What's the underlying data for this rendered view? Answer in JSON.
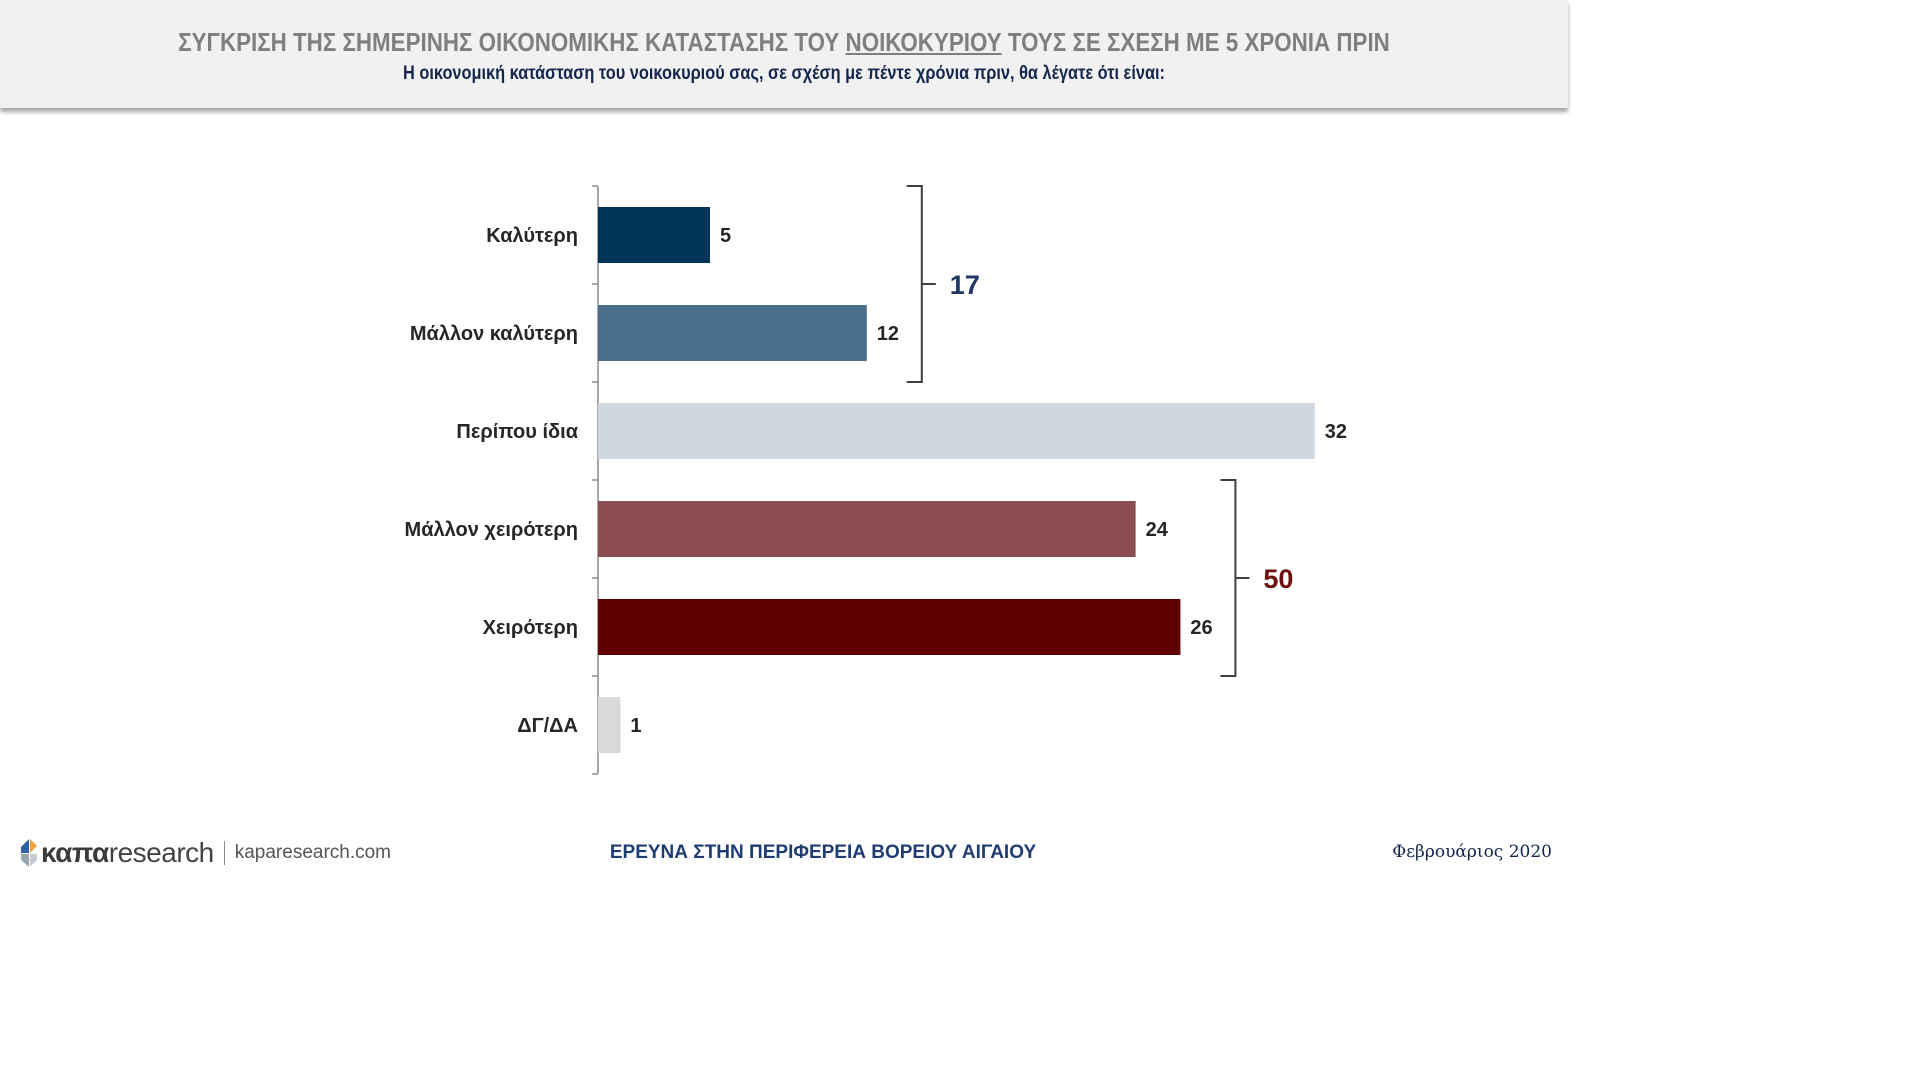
{
  "header": {
    "title_pre": "ΣΥΓΚΡΙΣΗ ΤΗΣ ΣΗΜΕΡΙΝΗΣ ΟΙΚΟΝΟΜΙΚΗΣ ΚΑΤΑΣΤΑΣΗΣ ΤΟΥ ",
    "title_underlined": "ΝΟΙΚΟΚΥΡΙΟΥ",
    "title_post": " ΤΟΥΣ ΣΕ ΣΧΕΣΗ ΜΕ 5 ΧΡΟΝΙΑ ΠΡΙΝ",
    "subtitle": "Η οικονομική κατάσταση του νοικοκυριού σας, σε σχέση με πέντε χρόνια πριν, θα λέγατε ότι είναι:"
  },
  "chart_data": {
    "type": "bar",
    "orientation": "horizontal",
    "categories": [
      "Καλύτερη",
      "Μάλλον καλύτερη",
      "Περίπου ίδια",
      "Μάλλον χειρότερη",
      "Χειρότερη",
      "ΔΓ/ΔΑ"
    ],
    "values": [
      5,
      12,
      32,
      24,
      26,
      1
    ],
    "value_labels": [
      "5",
      "12",
      "32",
      "24",
      "26",
      "1"
    ],
    "colors": [
      "#003459",
      "#4b6e8c",
      "#cfd8e0",
      "#8b4d4f",
      "#600000",
      "#d9d9d9"
    ],
    "xlim": [
      0,
      32
    ],
    "grid": false,
    "groups": [
      {
        "from": 0,
        "to": 1,
        "total": "17",
        "color": "#1f3864"
      },
      {
        "from": 3,
        "to": 4,
        "total": "50",
        "color": "#6e0d0d"
      }
    ]
  },
  "footer": {
    "logo_bold": "καπα",
    "logo_light": "research",
    "url": "kaparesearch.com",
    "center": "ΕΡΕΥΝΑ ΣΤΗΝ ΠΕΡΙΦΕΡΕΙΑ ΒΟΡΕΙΟΥ ΑΙΓΑΙΟΥ",
    "date": "Φεβρουάριος 2020"
  }
}
